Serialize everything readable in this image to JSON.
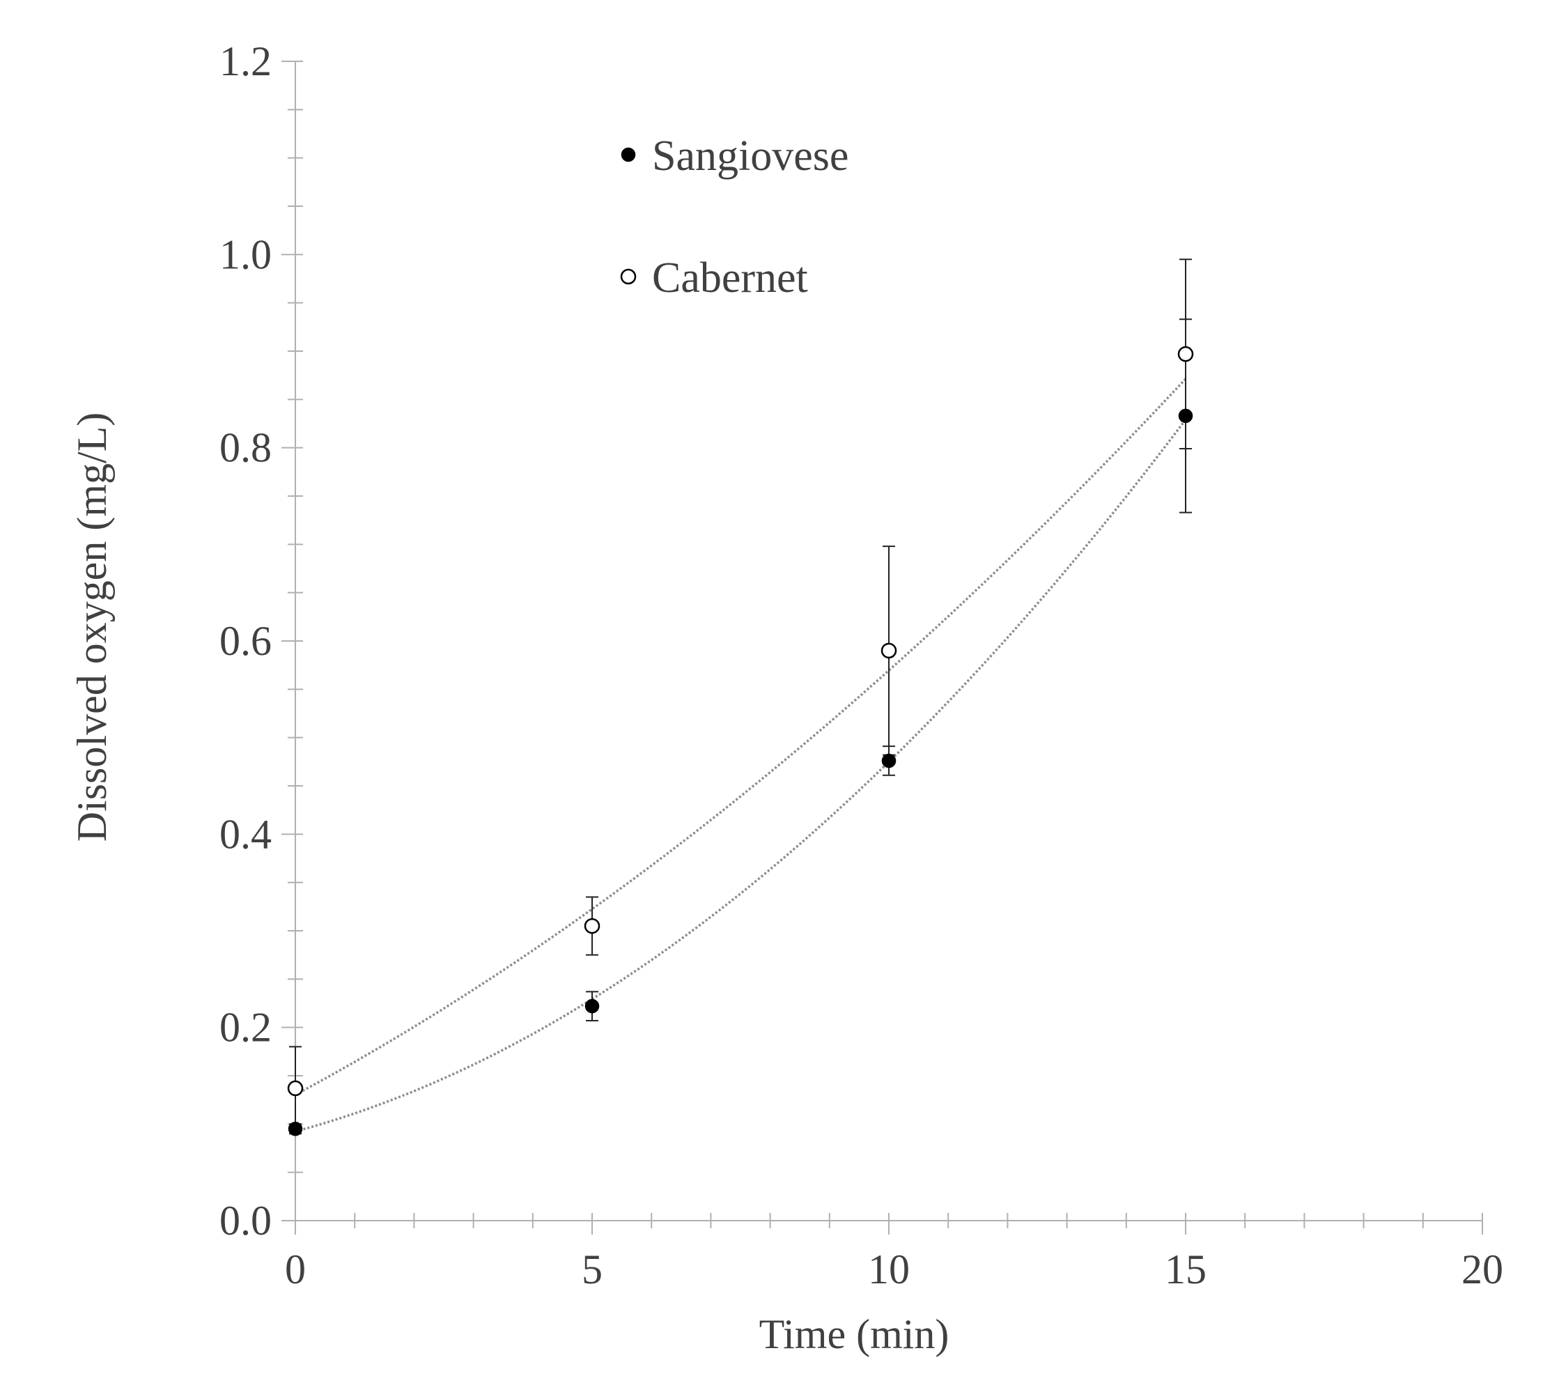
{
  "chart_data": {
    "type": "scatter",
    "title": "",
    "xlabel": "Time (min)",
    "ylabel": "Dissolved oxygen (mg/L)",
    "xlim": [
      0,
      20
    ],
    "ylim": [
      0,
      1.2
    ],
    "x_ticks": [
      "0",
      "5",
      "10",
      "15",
      "20"
    ],
    "y_ticks": [
      "0.0",
      "0.2",
      "0.4",
      "0.6",
      "0.8",
      "1.0",
      "1.2"
    ],
    "x_tick_values": [
      0,
      5,
      10,
      15,
      20
    ],
    "y_tick_values": [
      0,
      0.2,
      0.4,
      0.6,
      0.8,
      1.0,
      1.2
    ],
    "x_minor_step": 1,
    "y_minor_step": 0.05,
    "grid": false,
    "legend_position": "top-left",
    "trendline": "polynomial, dotted",
    "series": [
      {
        "name": "Sangiovese",
        "marker": "filled-circle",
        "x": [
          0,
          5,
          10,
          15
        ],
        "y": [
          0.095,
          0.222,
          0.476,
          0.833
        ],
        "error": [
          0.005,
          0.015,
          0.015,
          0.1
        ],
        "trend": [
          0.0923,
          0.2293,
          0.4749,
          0.8291
        ]
      },
      {
        "name": "Cabernet",
        "marker": "open-circle",
        "x": [
          0,
          5,
          10,
          15
        ],
        "y": [
          0.137,
          0.305,
          0.59,
          0.897
        ],
        "error": [
          0.043,
          0.03,
          0.108,
          0.098
        ],
        "trend": [
          0.1303,
          0.3225,
          0.5695,
          0.8713
        ]
      }
    ]
  }
}
